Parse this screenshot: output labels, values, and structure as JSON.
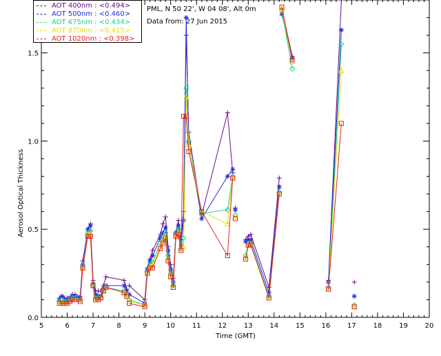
{
  "header": {
    "site": "PML, N 50 22', W 04 08', Alt 0m",
    "date": "Data from: 27 Jun 2015"
  },
  "colors": {
    "AOT400": "#6a0a8a",
    "AOT500": "#1f2adf",
    "AOT675": "#19d08a",
    "AOT870": "#e8e000",
    "AOT1020": "#e02020"
  },
  "chart_data": {
    "type": "line",
    "title": "",
    "xlabel": "Time (GMT)",
    "ylabel": "Aerosol Optical Thickness",
    "xlim": [
      5,
      20
    ],
    "ylim": [
      0,
      1.8
    ],
    "xticks": [
      5,
      6,
      7,
      8,
      9,
      10,
      11,
      12,
      13,
      14,
      15,
      16,
      17,
      18,
      19,
      20
    ],
    "yticks": [
      0.0,
      0.5,
      1.0,
      1.5
    ],
    "ytick_labels": [
      "0.0",
      "0.5",
      "1.0",
      "1.5"
    ],
    "legend_position": "top-left",
    "series": [
      {
        "name": "AOT 400nm : <0.494>",
        "marker": "plus",
        "color_key": "AOT400",
        "points": [
          [
            5.7,
            0.11
          ],
          [
            5.8,
            0.12
          ],
          [
            5.9,
            0.11
          ],
          [
            6.0,
            0.11
          ],
          [
            6.1,
            0.11
          ],
          [
            6.2,
            0.13
          ],
          [
            6.3,
            0.13
          ],
          [
            6.5,
            0.12
          ],
          [
            6.6,
            0.32
          ],
          [
            6.8,
            0.5
          ],
          [
            6.9,
            0.53
          ],
          [
            7.0,
            0.21
          ],
          [
            7.1,
            0.15
          ],
          [
            7.2,
            0.15
          ],
          [
            7.3,
            0.15
          ],
          [
            7.4,
            0.18
          ],
          [
            7.5,
            0.23
          ],
          [
            8.2,
            0.21
          ],
          [
            8.3,
            0.16
          ],
          [
            8.4,
            0.18
          ],
          [
            9.0,
            0.1
          ],
          [
            9.1,
            0.28
          ],
          [
            9.2,
            0.33
          ],
          [
            9.3,
            0.38
          ],
          [
            9.6,
            0.47
          ],
          [
            9.7,
            0.53
          ],
          [
            9.8,
            0.57
          ],
          [
            9.9,
            0.4
          ],
          [
            10.0,
            0.3
          ],
          [
            10.1,
            0.22
          ],
          [
            10.2,
            0.48
          ],
          [
            10.3,
            0.55
          ],
          [
            10.4,
            0.44
          ],
          [
            10.5,
            0.6
          ],
          [
            10.6,
            1.6
          ],
          [
            10.7,
            1.05
          ],
          [
            11.2,
            0.58
          ],
          [
            12.2,
            1.16
          ],
          [
            12.4,
            0.82
          ],
          [
            12.5,
            0.62
          ],
          [
            12.9,
            0.44
          ],
          [
            13.0,
            0.46
          ],
          [
            13.1,
            0.47
          ],
          [
            13.8,
            0.17
          ],
          [
            14.2,
            0.79
          ],
          [
            14.3,
            1.75
          ],
          [
            14.7,
            1.48
          ],
          [
            16.1,
            0.21
          ],
          [
            16.6,
            1.8
          ],
          [
            17.1,
            0.2
          ]
        ],
        "breaks_after_index": [
          18,
          38,
          39,
          44,
          46,
          48
        ]
      },
      {
        "name": "AOT 500nm : <0.460>",
        "marker": "asterisk",
        "color_key": "AOT500",
        "points": [
          [
            5.7,
            0.1
          ],
          [
            5.8,
            0.12
          ],
          [
            5.9,
            0.1
          ],
          [
            6.0,
            0.1
          ],
          [
            6.1,
            0.11
          ],
          [
            6.2,
            0.12
          ],
          [
            6.3,
            0.12
          ],
          [
            6.5,
            0.11
          ],
          [
            6.6,
            0.3
          ],
          [
            6.8,
            0.5
          ],
          [
            6.9,
            0.52
          ],
          [
            7.0,
            0.19
          ],
          [
            7.1,
            0.13
          ],
          [
            7.2,
            0.12
          ],
          [
            7.3,
            0.12
          ],
          [
            7.4,
            0.16
          ],
          [
            7.5,
            0.18
          ],
          [
            8.2,
            0.18
          ],
          [
            8.3,
            0.15
          ],
          [
            8.4,
            0.13
          ],
          [
            9.0,
            0.08
          ],
          [
            9.1,
            0.27
          ],
          [
            9.2,
            0.32
          ],
          [
            9.3,
            0.35
          ],
          [
            9.6,
            0.45
          ],
          [
            9.7,
            0.48
          ],
          [
            9.8,
            0.51
          ],
          [
            9.9,
            0.38
          ],
          [
            10.0,
            0.27
          ],
          [
            10.1,
            0.2
          ],
          [
            10.2,
            0.48
          ],
          [
            10.3,
            0.52
          ],
          [
            10.4,
            0.41
          ],
          [
            10.5,
            0.55
          ],
          [
            10.6,
            1.7
          ],
          [
            10.7,
            0.99
          ],
          [
            11.2,
            0.56
          ],
          [
            12.2,
            0.8
          ],
          [
            12.4,
            0.84
          ],
          [
            12.5,
            0.61
          ],
          [
            12.9,
            0.43
          ],
          [
            13.0,
            0.44
          ],
          [
            13.1,
            0.44
          ],
          [
            13.8,
            0.14
          ],
          [
            14.2,
            0.74
          ],
          [
            14.3,
            1.72
          ],
          [
            14.7,
            1.47
          ],
          [
            16.1,
            0.2
          ],
          [
            16.6,
            1.63
          ],
          [
            17.1,
            0.12
          ]
        ],
        "breaks_after_index": [
          18,
          38,
          39,
          44,
          46,
          48
        ]
      },
      {
        "name": "AOT 675nm : <0.434>",
        "marker": "diamond",
        "color_key": "AOT675",
        "points": [
          [
            5.7,
            0.09
          ],
          [
            5.8,
            0.1
          ],
          [
            5.9,
            0.09
          ],
          [
            6.0,
            0.09
          ],
          [
            6.1,
            0.1
          ],
          [
            6.2,
            0.11
          ],
          [
            6.3,
            0.11
          ],
          [
            6.5,
            0.1
          ],
          [
            6.6,
            0.29
          ],
          [
            6.8,
            0.48
          ],
          [
            6.9,
            0.49
          ],
          [
            7.0,
            0.18
          ],
          [
            7.1,
            0.11
          ],
          [
            7.2,
            0.11
          ],
          [
            7.3,
            0.11
          ],
          [
            7.4,
            0.15
          ],
          [
            7.5,
            0.17
          ],
          [
            8.2,
            0.15
          ],
          [
            8.3,
            0.13
          ],
          [
            8.4,
            0.1
          ],
          [
            9.0,
            0.07
          ],
          [
            9.1,
            0.26
          ],
          [
            9.2,
            0.3
          ],
          [
            9.3,
            0.31
          ],
          [
            9.6,
            0.42
          ],
          [
            9.7,
            0.45
          ],
          [
            9.8,
            0.48
          ],
          [
            9.9,
            0.35
          ],
          [
            10.0,
            0.25
          ],
          [
            10.1,
            0.18
          ],
          [
            10.2,
            0.47
          ],
          [
            10.3,
            0.5
          ],
          [
            10.4,
            0.39
          ],
          [
            10.5,
            0.45
          ],
          [
            10.6,
            1.3
          ],
          [
            10.7,
            1.0
          ],
          [
            11.2,
            0.59
          ],
          [
            12.2,
            0.61
          ],
          [
            12.4,
            0.8
          ],
          [
            12.5,
            0.58
          ],
          [
            12.9,
            0.35
          ],
          [
            13.0,
            0.42
          ],
          [
            13.1,
            0.42
          ],
          [
            13.8,
            0.12
          ],
          [
            14.2,
            0.71
          ],
          [
            14.3,
            1.74
          ],
          [
            14.7,
            1.41
          ],
          [
            16.1,
            0.17
          ],
          [
            16.6,
            1.55
          ],
          [
            17.1,
            0.07
          ]
        ],
        "breaks_after_index": [
          18,
          38,
          39,
          44,
          46,
          48
        ]
      },
      {
        "name": "AOT 870nm : <0.415>",
        "marker": "triangle",
        "color_key": "AOT870",
        "points": [
          [
            5.7,
            0.08
          ],
          [
            5.8,
            0.09
          ],
          [
            5.9,
            0.08
          ],
          [
            6.0,
            0.08
          ],
          [
            6.1,
            0.09
          ],
          [
            6.2,
            0.1
          ],
          [
            6.3,
            0.1
          ],
          [
            6.5,
            0.09
          ],
          [
            6.6,
            0.28
          ],
          [
            6.8,
            0.47
          ],
          [
            6.9,
            0.47
          ],
          [
            7.0,
            0.18
          ],
          [
            7.1,
            0.1
          ],
          [
            7.2,
            0.1
          ],
          [
            7.3,
            0.11
          ],
          [
            7.4,
            0.15
          ],
          [
            7.5,
            0.17
          ],
          [
            8.2,
            0.14
          ],
          [
            8.3,
            0.12
          ],
          [
            8.4,
            0.09
          ],
          [
            9.0,
            0.07
          ],
          [
            9.1,
            0.25
          ],
          [
            9.2,
            0.29
          ],
          [
            9.3,
            0.29
          ],
          [
            9.6,
            0.4
          ],
          [
            9.7,
            0.43
          ],
          [
            9.8,
            0.46
          ],
          [
            9.9,
            0.33
          ],
          [
            10.0,
            0.24
          ],
          [
            10.1,
            0.17
          ],
          [
            10.2,
            0.46
          ],
          [
            10.3,
            0.48
          ],
          [
            10.4,
            0.38
          ],
          [
            10.5,
            0.4
          ],
          [
            10.6,
            1.25
          ],
          [
            10.7,
            0.98
          ],
          [
            11.2,
            0.6
          ],
          [
            12.2,
            0.53
          ],
          [
            12.4,
            0.79
          ],
          [
            12.5,
            0.57
          ],
          [
            12.9,
            0.34
          ],
          [
            13.0,
            0.41
          ],
          [
            13.1,
            0.41
          ],
          [
            13.8,
            0.11
          ],
          [
            14.2,
            0.7
          ],
          [
            14.3,
            1.75
          ],
          [
            14.7,
            1.45
          ],
          [
            16.1,
            0.16
          ],
          [
            16.6,
            1.4
          ],
          [
            17.1,
            0.06
          ]
        ],
        "breaks_after_index": [
          18,
          38,
          39,
          44,
          46,
          48
        ]
      },
      {
        "name": "AOT 1020nm : <0.398>",
        "marker": "square",
        "color_key": "AOT1020",
        "points": [
          [
            5.7,
            0.08
          ],
          [
            5.8,
            0.08
          ],
          [
            5.9,
            0.08
          ],
          [
            6.0,
            0.08
          ],
          [
            6.1,
            0.09
          ],
          [
            6.2,
            0.1
          ],
          [
            6.3,
            0.1
          ],
          [
            6.5,
            0.09
          ],
          [
            6.6,
            0.28
          ],
          [
            6.8,
            0.46
          ],
          [
            6.9,
            0.46
          ],
          [
            7.0,
            0.18
          ],
          [
            7.1,
            0.1
          ],
          [
            7.2,
            0.1
          ],
          [
            7.3,
            0.11
          ],
          [
            7.4,
            0.15
          ],
          [
            7.5,
            0.17
          ],
          [
            8.2,
            0.14
          ],
          [
            8.3,
            0.12
          ],
          [
            8.4,
            0.08
          ],
          [
            9.0,
            0.06
          ],
          [
            9.1,
            0.25
          ],
          [
            9.2,
            0.28
          ],
          [
            9.3,
            0.28
          ],
          [
            9.6,
            0.39
          ],
          [
            9.7,
            0.42
          ],
          [
            9.8,
            0.45
          ],
          [
            9.9,
            0.32
          ],
          [
            10.0,
            0.23
          ],
          [
            10.1,
            0.17
          ],
          [
            10.2,
            0.46
          ],
          [
            10.3,
            0.47
          ],
          [
            10.4,
            0.38
          ],
          [
            10.5,
            1.14
          ],
          [
            10.6,
            1.14
          ],
          [
            10.7,
            0.94
          ],
          [
            11.2,
            0.6
          ],
          [
            12.2,
            0.35
          ],
          [
            12.4,
            0.79
          ],
          [
            12.5,
            0.56
          ],
          [
            12.9,
            0.33
          ],
          [
            13.0,
            0.41
          ],
          [
            13.1,
            0.41
          ],
          [
            13.8,
            0.11
          ],
          [
            14.2,
            0.7
          ],
          [
            14.3,
            1.76
          ],
          [
            14.7,
            1.46
          ],
          [
            16.1,
            0.16
          ],
          [
            16.6,
            1.1
          ],
          [
            17.1,
            0.06
          ]
        ],
        "breaks_after_index": [
          18,
          38,
          39,
          44,
          46,
          48
        ]
      }
    ]
  }
}
